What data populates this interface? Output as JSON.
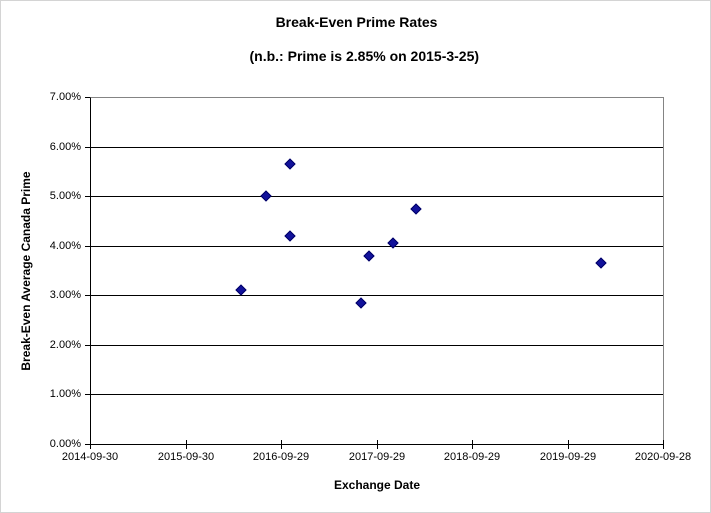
{
  "chart_data": {
    "type": "scatter",
    "title": "Break-Even Prime Rates",
    "subtitle": "(n.b.: Prime is 2.85% on 2015-3-25)",
    "xlabel": "Exchange Date",
    "ylabel": "Break-Even Average Canada Prime",
    "legend": "none",
    "grid": "horizontal",
    "x_axis": {
      "type": "date",
      "min": "2014-09-30",
      "max": "2020-09-28",
      "tick_labels": [
        "2014-09-30",
        "2015-09-30",
        "2016-09-29",
        "2017-09-29",
        "2018-09-29",
        "2019-09-29",
        "2020-09-28"
      ]
    },
    "y_axis": {
      "min": 0,
      "max": 7,
      "tick_step": 1,
      "unit": "percent",
      "tick_labels": [
        "0.00%",
        "1.00%",
        "2.00%",
        "3.00%",
        "4.00%",
        "5.00%",
        "6.00%",
        "7.00%"
      ]
    },
    "series": [
      {
        "name": "Break-Even Average Canada Prime",
        "marker": "diamond",
        "color": "#000080",
        "points": [
          {
            "x": "2016-04-29",
            "y": 3.1
          },
          {
            "x": "2016-08-03",
            "y": 5.0
          },
          {
            "x": "2016-11-02",
            "y": 5.65
          },
          {
            "x": "2016-11-02",
            "y": 4.2
          },
          {
            "x": "2017-08-01",
            "y": 2.85
          },
          {
            "x": "2017-08-31",
            "y": 3.8
          },
          {
            "x": "2017-12-01",
            "y": 4.05
          },
          {
            "x": "2018-02-27",
            "y": 4.75
          },
          {
            "x": "2020-02-03",
            "y": 3.65
          }
        ]
      }
    ]
  },
  "styles": {
    "marker_fill": "#12129b",
    "marker_border": "#000066",
    "gridline_color": "#000000",
    "axis_color": "#000000",
    "plot_border_color": "#848484",
    "text_color": "#000000"
  }
}
